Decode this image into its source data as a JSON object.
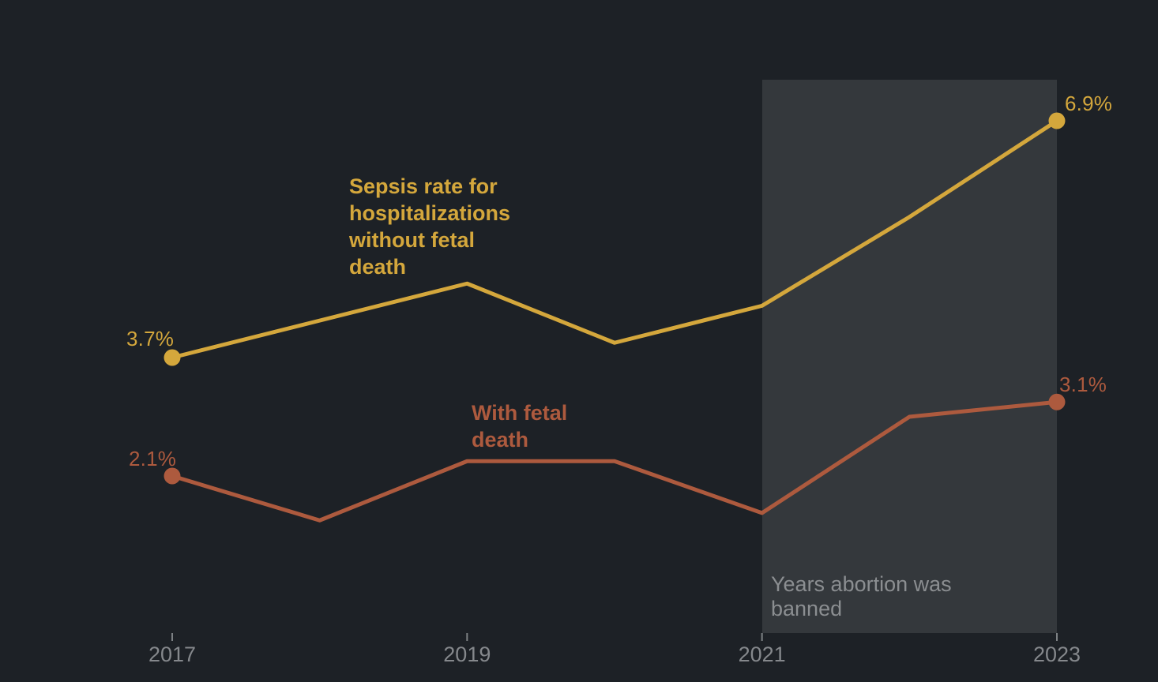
{
  "colors": {
    "bg": "#1d2126",
    "gold": "#d4a73c",
    "rust": "#ad5a3e",
    "region": "#34383c",
    "region_text": "#8b8e91",
    "axis_text": "#85888c",
    "tick": "#7d8184"
  },
  "chart_data": {
    "type": "line",
    "title": "",
    "xlabel": "",
    "ylabel": "",
    "unit": "%",
    "grid": false,
    "x": [
      2017,
      2018,
      2019,
      2020,
      2021,
      2022,
      2023
    ],
    "x_range": [
      2017,
      2023
    ],
    "x_ticks": [
      "2017",
      "2019",
      "2021",
      "2023"
    ],
    "series": [
      {
        "name": "Sepsis rate for hospitalizations without fetal death",
        "color": "#d4a73c",
        "values": [
          3.7,
          4.2,
          4.7,
          3.9,
          4.4,
          5.6,
          6.9
        ],
        "start_label": "3.7%",
        "end_label": "6.9%"
      },
      {
        "name": "With fetal death",
        "color": "#ad5a3e",
        "values": [
          2.1,
          1.5,
          2.3,
          2.3,
          1.6,
          2.9,
          3.1
        ],
        "start_label": "2.1%",
        "end_label": "3.1%"
      }
    ],
    "banned_region": {
      "x_start": 2021,
      "x_end": 2023,
      "label": "Years abortion was\nbanned"
    }
  },
  "annotations": {
    "series_without": "Sepsis rate for\nhospitalizations\nwithout fetal\ndeath",
    "series_with": "With fetal\ndeath"
  }
}
